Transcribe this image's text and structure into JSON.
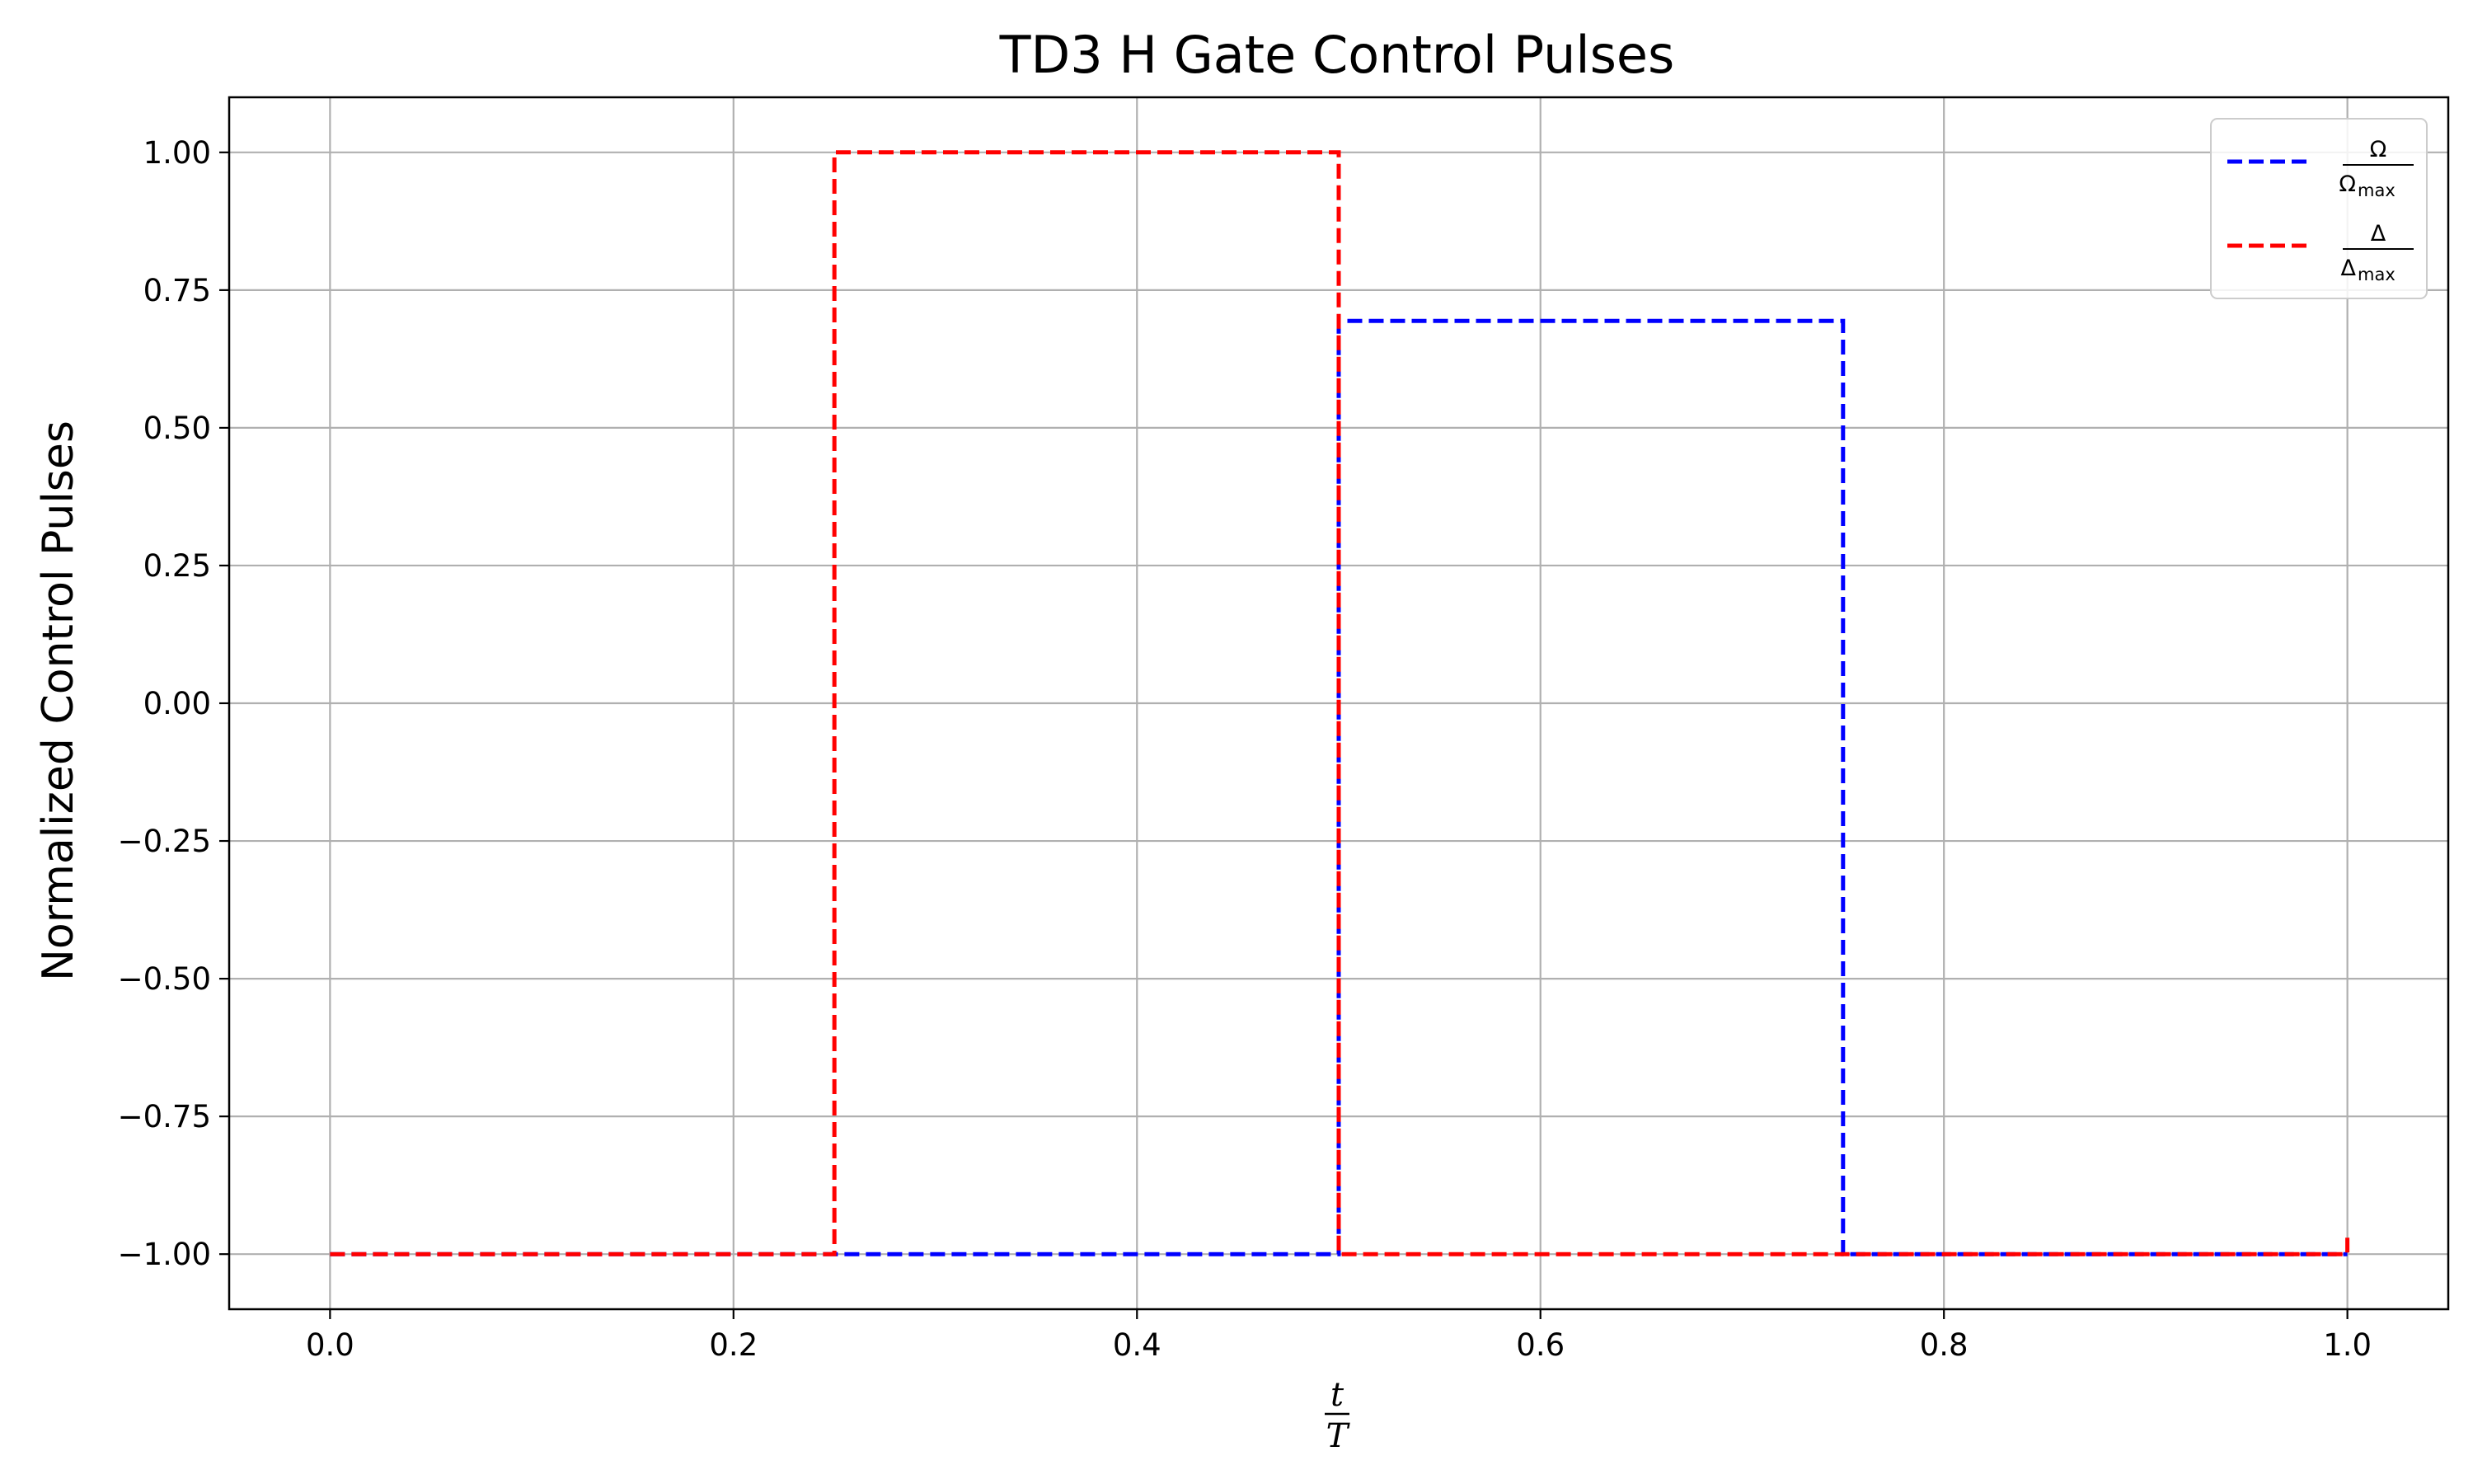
{
  "chart_data": {
    "type": "line",
    "title": "TD3 H Gate Control Pulses",
    "ylabel": "Normalized Control Pulses",
    "xlabel": {
      "numerator": "t",
      "denominator": "T"
    },
    "xlim": [
      -0.05,
      1.05
    ],
    "ylim": [
      -1.1,
      1.1
    ],
    "xticks": [
      0.0,
      0.2,
      0.4,
      0.6,
      0.8,
      1.0
    ],
    "xtick_labels": [
      "0.0",
      "0.2",
      "0.4",
      "0.6",
      "0.8",
      "1.0"
    ],
    "yticks": [
      1.0,
      0.75,
      0.5,
      0.25,
      0.0,
      -0.25,
      -0.5,
      -0.75,
      -1.0
    ],
    "ytick_labels": [
      "1.00",
      "0.75",
      "0.50",
      "0.25",
      "0.00",
      "−0.25",
      "−0.50",
      "−0.75",
      "−1.00"
    ],
    "grid": true,
    "legend_position": "top-right",
    "series": [
      {
        "name": "Ω / Ωmax",
        "legend": {
          "numerator": "Ω",
          "denominator": "Ω",
          "denominator_sub": "max"
        },
        "color": "#0000ff",
        "style": "dashed",
        "x": [
          0.0,
          0.25,
          0.25,
          0.5,
          0.5,
          0.75,
          0.75,
          1.0
        ],
        "y": [
          -1.0,
          -1.0,
          -1.0,
          -1.0,
          0.694,
          0.694,
          -1.0,
          -1.0
        ]
      },
      {
        "name": "Δ / Δmax",
        "legend": {
          "numerator": "Δ",
          "denominator": "Δ",
          "denominator_sub": "max"
        },
        "color": "#ff0000",
        "style": "dashed",
        "x": [
          0.0,
          0.25,
          0.25,
          0.5,
          0.5,
          0.75,
          0.75,
          1.0,
          1.0
        ],
        "y": [
          -1.0,
          -1.0,
          1.0,
          1.0,
          -1.0,
          -1.0,
          -1.0,
          -1.0,
          -0.97
        ]
      }
    ]
  }
}
